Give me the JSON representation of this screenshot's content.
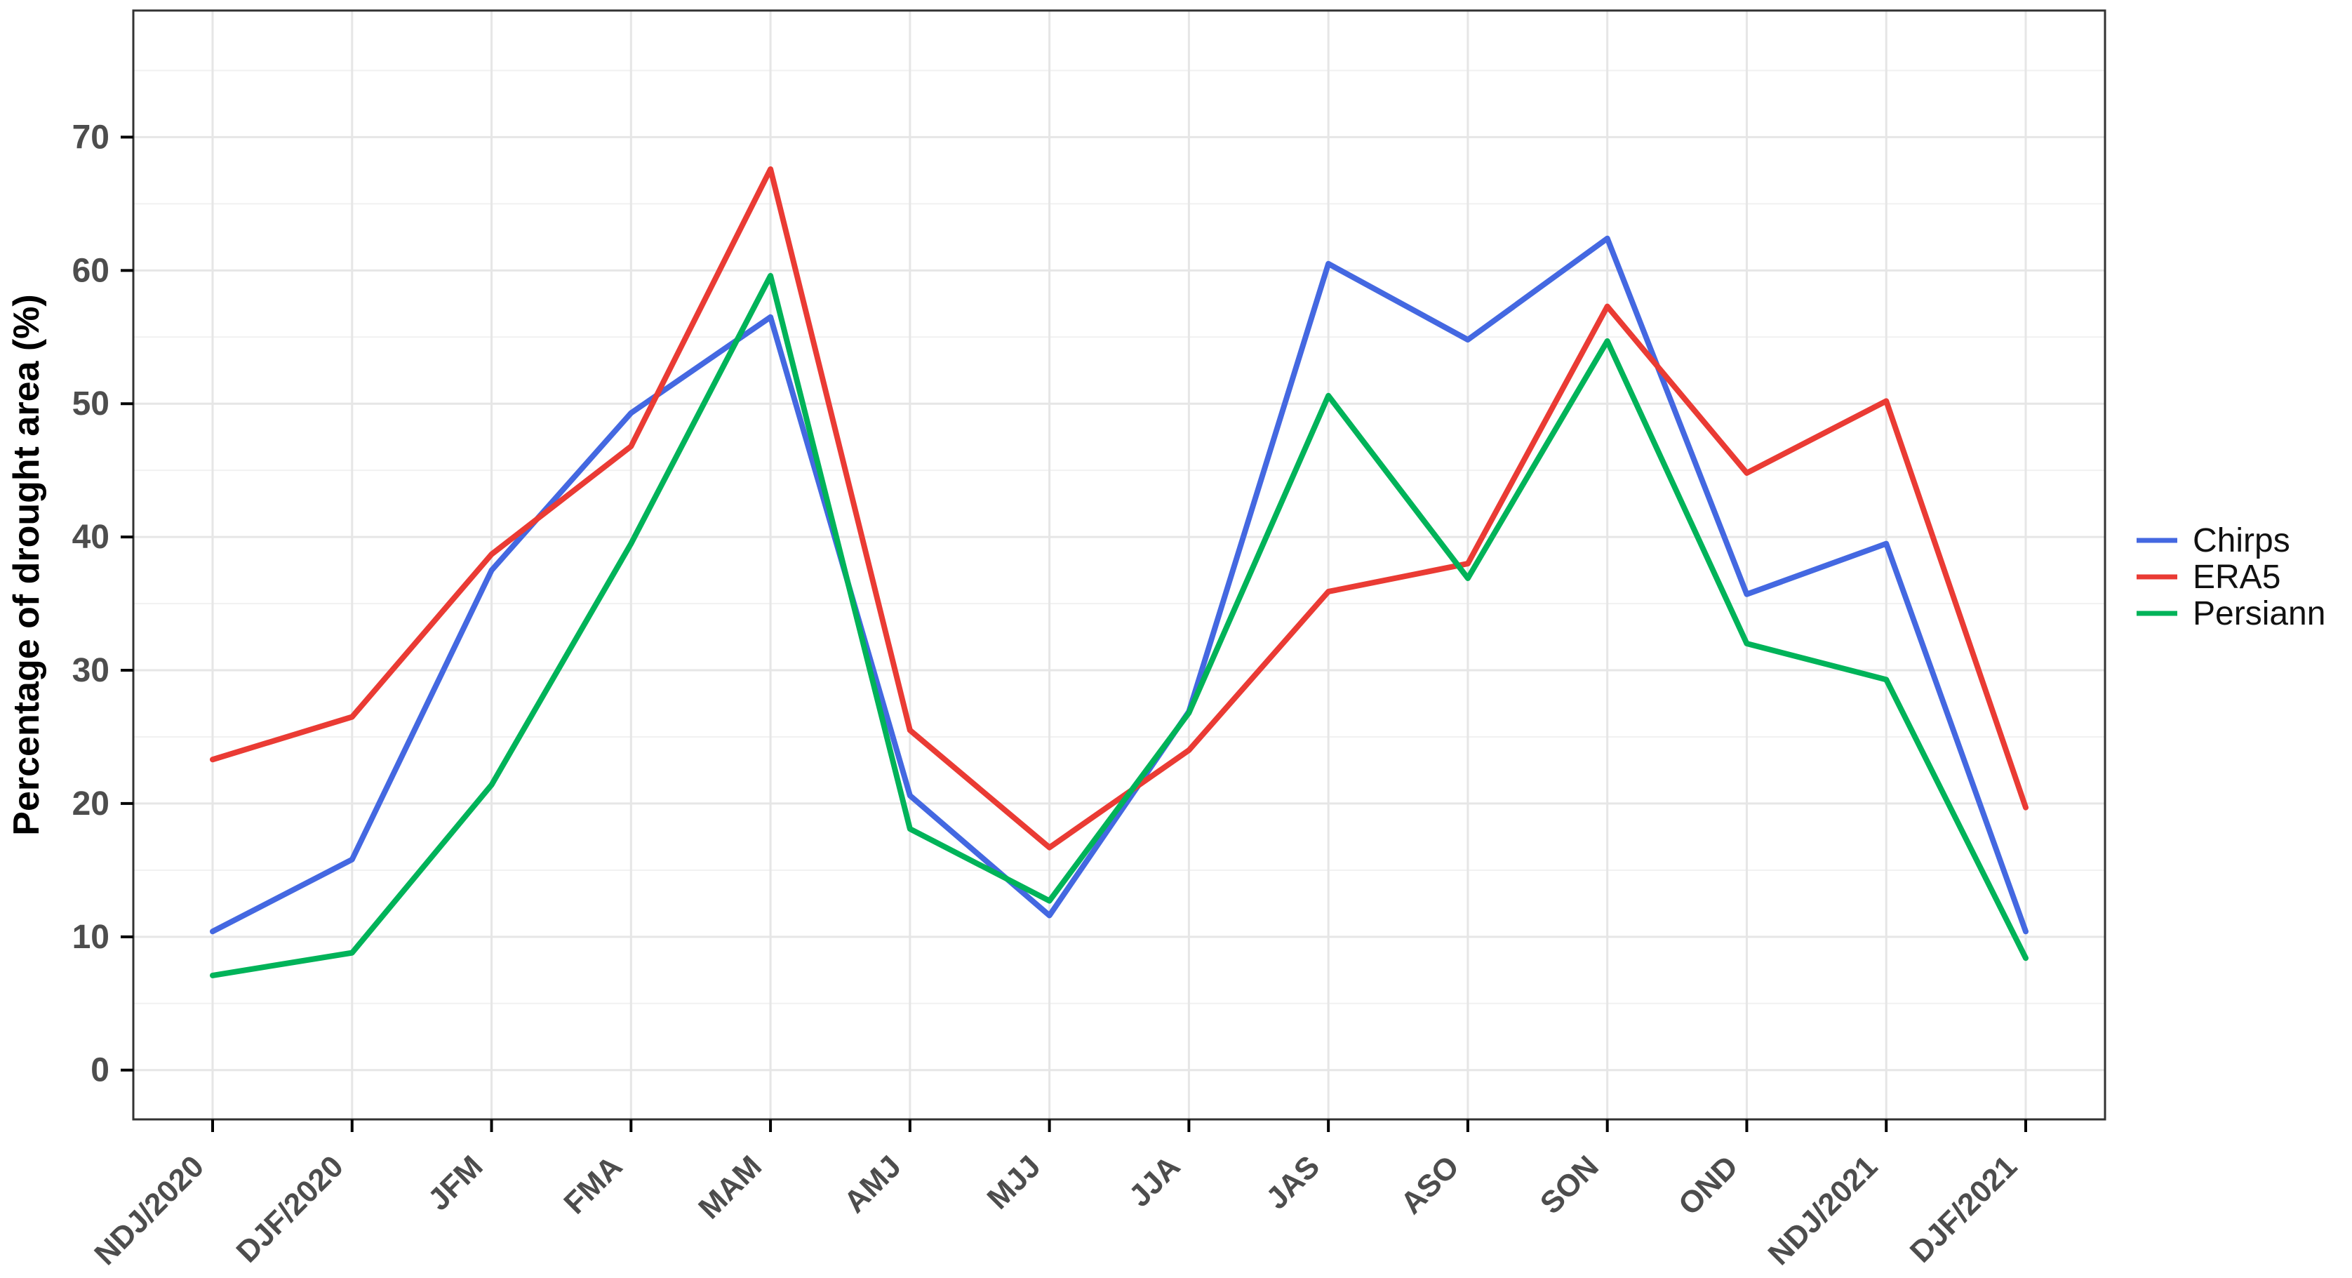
{
  "chart_data": {
    "type": "line",
    "title": "",
    "xlabel": "",
    "ylabel": "Percentage of drought area (%)",
    "categories": [
      "NDJ/2020",
      "DJF/2020",
      "JFM",
      "FMA",
      "MAM",
      "AMJ",
      "MJJ",
      "JJA",
      "JAS",
      "ASO",
      "SON",
      "OND",
      "NDJ/2021",
      "DJF/2021"
    ],
    "y_ticks": [
      0,
      10,
      20,
      30,
      40,
      50,
      60,
      70
    ],
    "y_minor_ticks": [
      5,
      15,
      25,
      35,
      45,
      55,
      65,
      75
    ],
    "ylim": [
      -3.7,
      79.5
    ],
    "grid": true,
    "legend_position": "right",
    "series": [
      {
        "name": "Chirps",
        "color": "#4468E1",
        "values": [
          10.4,
          15.8,
          37.5,
          49.3,
          56.5,
          20.6,
          11.6,
          26.9,
          60.5,
          54.8,
          62.4,
          35.7,
          39.5,
          10.4
        ]
      },
      {
        "name": "ERA5",
        "color": "#EA3B34",
        "values": [
          23.3,
          26.5,
          38.7,
          46.8,
          67.6,
          25.5,
          16.7,
          24.0,
          35.9,
          38.0,
          57.3,
          44.8,
          50.2,
          19.7
        ]
      },
      {
        "name": "Persiann",
        "color": "#00B359",
        "values": [
          7.1,
          8.8,
          21.4,
          39.5,
          59.6,
          18.1,
          12.7,
          26.8,
          50.6,
          36.9,
          54.7,
          32.0,
          29.3,
          8.4
        ]
      }
    ]
  }
}
